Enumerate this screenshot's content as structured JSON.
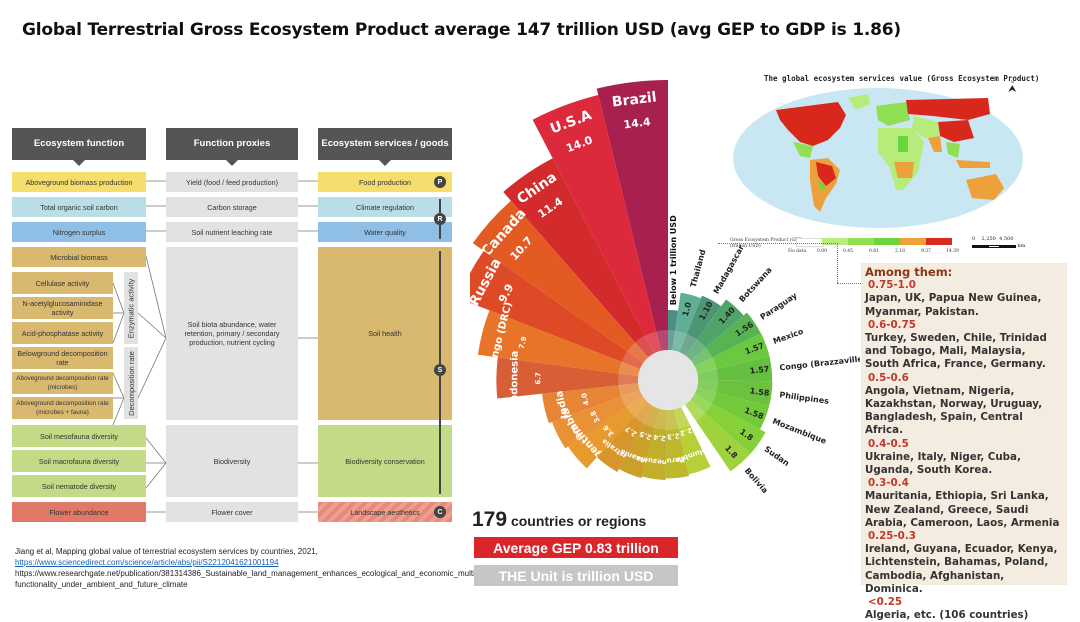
{
  "title": "Global Terrestrial Gross Ecosystem Product average 147 trillion USD (avg GEP to GDP is 1.86)",
  "diagram": {
    "headers": [
      "Ecosystem function",
      "Function proxies",
      "Ecosystem services / goods"
    ],
    "functions": [
      "Aboveground biomass production",
      "Total organic soil carbon",
      "Nitrogen surplus",
      "Microbial biomass",
      "Cellulase activity",
      "N-acetylglucosaminidase activity",
      "Acid-phosphatase activity",
      "Belowground decomposition rate",
      "Aboveground decomposition rate (microbes)",
      "Aboveground decomposition rate (microbes + fauna)",
      "Soil mesofauna diversity",
      "Soil macrofauna diversity",
      "Soil nematode diversity",
      "Flower abundance"
    ],
    "group_labels": [
      "Enzymatic activity",
      "Decomposition rate"
    ],
    "proxies": [
      "Yield (food / feed production)",
      "Carbon storage",
      "Soil nutrient leaching rate",
      "Soil biota abundance, water retention, primary / secondary production, nutrient cycling",
      "Biodiversity",
      "Flower cover"
    ],
    "services": [
      "Food production",
      "Climate regulation",
      "Water quality",
      "Soil health",
      "Biodiversity conservation",
      "Landscape aesthetics"
    ],
    "badges": [
      "P",
      "R",
      "S",
      "C"
    ]
  },
  "references": {
    "line1": "Jiang et al, Mapping global value of terrestrial ecosystem services by countries, 2021,",
    "link": "https://www.sciencedirect.com/science/article/abs/pii/S2212041621001194",
    "line3": "https://www.researchgate.net/publication/381314386_Sustainable_land_management_enhances_ecological_and_economic_multifunctionality_under_ambient_and_future_climate"
  },
  "summary": {
    "count_number": "179",
    "count_label": "countries or regions",
    "average": "Average GEP 0.83 trillion",
    "unit": "THE Unit is trillion USD"
  },
  "chart_data": {
    "type": "radial-bar",
    "title": "Gross Ecosystem Product by country (trillion USD)",
    "unit": "trillion USD",
    "categories": [
      "Brazil",
      "U.S.A",
      "China",
      "Canada",
      "Russia",
      "Congo (DRC)",
      "Indonesia",
      "India",
      "Zambia",
      "Argentina",
      "Australia",
      "Tanzania",
      "Venezuela",
      "Peru",
      "Columbia",
      "Bolivia",
      "Sudan",
      "Mozambique",
      "Philippines",
      "Congo (Brazzaville)",
      "Mexico",
      "Paraguay",
      "Botswana",
      "Madagascar",
      "Thailand"
    ],
    "values": [
      14.4,
      14.0,
      11.4,
      10.7,
      9.9,
      7.9,
      6.7,
      4.0,
      3.8,
      3.6,
      2.7,
      2.5,
      2.4,
      2.3,
      2.2,
      1.8,
      1.8,
      1.58,
      1.58,
      1.57,
      1.57,
      1.56,
      1.4,
      1.1,
      1.0
    ],
    "value_labels": [
      "14.4",
      "14.0",
      "11.4",
      "10.7",
      "9.9",
      "7.9",
      "6.7",
      "4.0",
      "3.8",
      "3.6",
      "2.7",
      "2.5",
      "2.4",
      "2.3",
      "2.2",
      "1.8",
      "1.8",
      "1.58",
      "1.58",
      "1.57",
      "1.57",
      "1.56",
      "1.40",
      "1.10",
      "1.0"
    ],
    "colors": [
      "#a8204f",
      "#dc2a3c",
      "#d32b2b",
      "#e35a23",
      "#de4a26",
      "#e8742a",
      "#d85e35",
      "#e58535",
      "#e99136",
      "#e79a2d",
      "#d7962b",
      "#c9a02a",
      "#c2ad2c",
      "#bdb82e",
      "#b8cf38",
      "#9fd33d",
      "#86d13a",
      "#72c93a",
      "#6cc23e",
      "#64c040",
      "#6ac93e",
      "#58b453",
      "#4fa46a",
      "#4d9673",
      "#5fae95"
    ],
    "annotation": "Below 1 trillion USD"
  },
  "map": {
    "title": "The global ecosystem services value (Gross Ecosystem Product)",
    "legend_title_line1": "Gross Ecosystem Product (GEP)",
    "legend_title_line2": "(trillion USD)",
    "legend_nodata": "No data",
    "legend_ticks": [
      "0.00",
      "0.45",
      "0.81",
      "2.18",
      "9.37",
      "14.39"
    ],
    "legend_colors": [
      "#ffffff",
      "#b5ec7a",
      "#8fe052",
      "#6ad63b",
      "#eda13a",
      "#d82a1e"
    ],
    "scale_labels": [
      "0",
      "2,250",
      "4,500"
    ],
    "scale_unit": "km",
    "north": "N"
  },
  "among": {
    "heading": "Among them:",
    "groups": [
      {
        "range": "0.75-1.0",
        "countries": "Japan, UK, Papua New Guinea, Myanmar, Pakistan."
      },
      {
        "range": "0.6-0.75",
        "countries": "Turkey, Sweden, Chile, Trinidad and Tobago, Mali, Malaysia, South Africa, France, Germany."
      },
      {
        "range": "0.5-0.6",
        "countries": "Angola, Vietnam, Nigeria, Kazakhstan, Norway, Uruguay, Bangladesh, Spain, Central Africa."
      },
      {
        "range": "0.4-0.5",
        "countries": "Ukraine, Italy, Niger, Cuba, Uganda, South Korea."
      },
      {
        "range": "0.3-0.4",
        "countries": "Mauritania, Ethiopia, Sri Lanka, New Zealand, Greece, Saudi Arabia, Cameroon, Laos, Armenia"
      },
      {
        "range": "0.25-0.3",
        "countries": "Ireland, Guyana, Ecuador, Kenya, Lichtenstein, Bahamas, Poland, Cambodia, Afghanistan, Dominica."
      },
      {
        "range": "<0.25",
        "countries": "Algeria, etc. (106 countries)"
      }
    ]
  }
}
